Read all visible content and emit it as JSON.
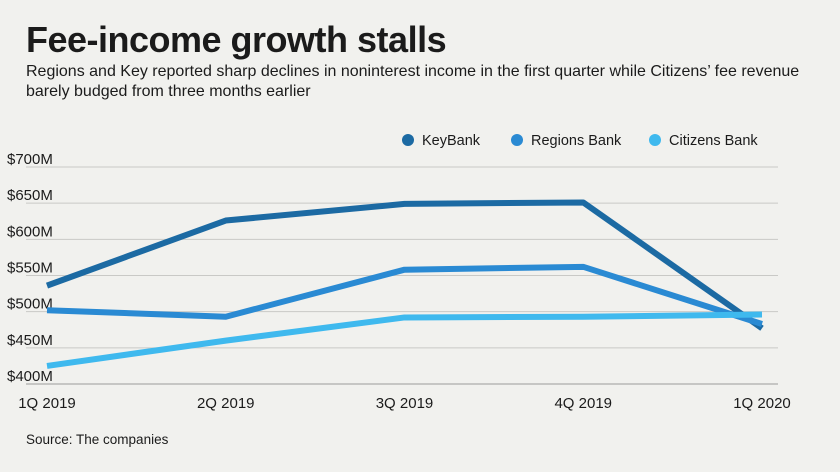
{
  "chart_data": {
    "type": "line",
    "title": "Fee-income growth stalls",
    "subtitle": "Regions and Key reported sharp declines in noninterest income in the first quarter while Citizens’ fee revenue barely budged from three months earlier",
    "categories": [
      "1Q 2019",
      "2Q 2019",
      "3Q 2019",
      "4Q 2019",
      "1Q 2020"
    ],
    "ylim": [
      400,
      700
    ],
    "yticks": [
      {
        "value": 700,
        "label": "$700M"
      },
      {
        "value": 650,
        "label": "$650M"
      },
      {
        "value": 600,
        "label": "$600M"
      },
      {
        "value": 550,
        "label": "$550M"
      },
      {
        "value": 500,
        "label": "$500M"
      },
      {
        "value": 450,
        "label": "$450M"
      },
      {
        "value": 400,
        "label": "$400M"
      }
    ],
    "grid": true,
    "legend": "top-right",
    "series": [
      {
        "name": "KeyBank",
        "color": "#1c6aa3",
        "values": [
          536,
          626,
          649,
          651,
          477
        ]
      },
      {
        "name": "Regions Bank",
        "color": "#2a8ad3",
        "values": [
          502,
          493,
          558,
          562,
          483
        ]
      },
      {
        "name": "Citizens Bank",
        "color": "#3fb9ee",
        "values": [
          425,
          460,
          492,
          493,
          496
        ]
      }
    ],
    "source": "Source: The companies"
  }
}
